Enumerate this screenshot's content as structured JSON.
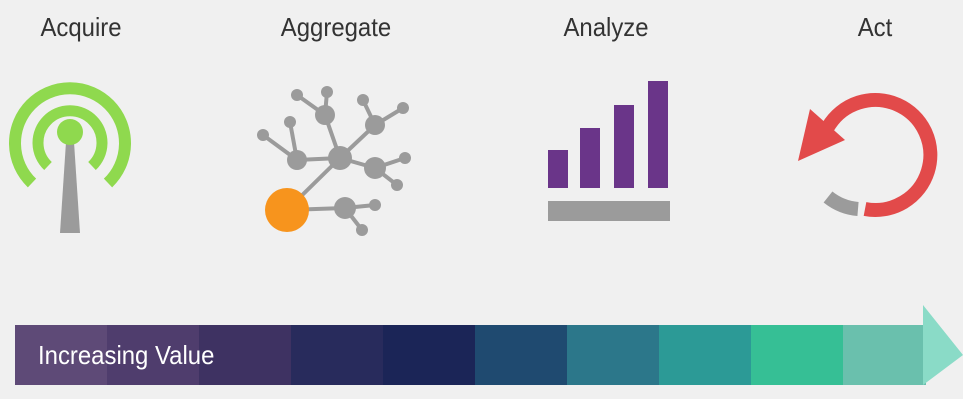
{
  "stages": [
    {
      "label": "Acquire",
      "icon": "antenna-signal-icon",
      "color": "#8fd94e"
    },
    {
      "label": "Aggregate",
      "icon": "network-nodes-icon",
      "color": "#f7941d"
    },
    {
      "label": "Analyze",
      "icon": "bar-chart-icon",
      "color": "#6a3589"
    },
    {
      "label": "Act",
      "icon": "refresh-arrow-icon",
      "color": "#e24a4a"
    }
  ],
  "value_bar": {
    "label": "Increasing Value",
    "segment_colors": [
      "#5e4a77",
      "#4f3d6d",
      "#3e3262",
      "#282b5c",
      "#1b2557",
      "#1f4a70",
      "#2c778a",
      "#2c9a96",
      "#36bf95",
      "#6ac0ad",
      "#8adbc7"
    ]
  }
}
